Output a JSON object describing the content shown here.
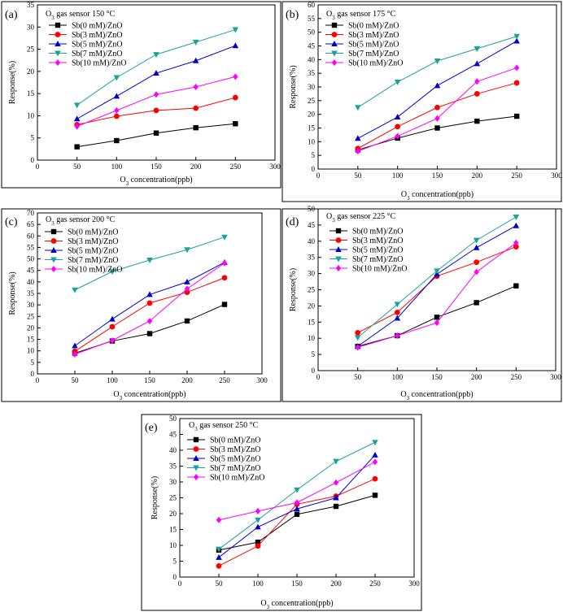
{
  "figure": {
    "description_label": "O3 gas sensor response multi-panel figure"
  },
  "chart_data": [
    {
      "type": "line",
      "panel_label": "(a)",
      "title": "O3 gas sensor 150 °C",
      "xlabel": "O3 concentration(ppb)",
      "ylabel": "Response(%)",
      "x": [
        50,
        100,
        150,
        200,
        250
      ],
      "xlim": [
        0,
        300
      ],
      "xticks": [
        0,
        50,
        100,
        150,
        200,
        250,
        300
      ],
      "ylim": [
        0,
        35
      ],
      "yticks": [
        0,
        5,
        10,
        15,
        20,
        25,
        30,
        35
      ],
      "series": [
        {
          "name": "Sb(0 mM)/ZnO",
          "color": "#000000",
          "marker": "square",
          "values": [
            3.0,
            4.4,
            6.1,
            7.3,
            8.2
          ]
        },
        {
          "name": "Sb(3 mM)/ZnO",
          "color": "#ff0000",
          "marker": "circle",
          "values": [
            8.0,
            9.9,
            11.2,
            11.7,
            14.1
          ]
        },
        {
          "name": "Sb(5 mM)/ZnO",
          "color": "#0000cc",
          "marker": "triangle",
          "values": [
            9.3,
            14.4,
            19.6,
            22.4,
            25.8
          ]
        },
        {
          "name": "Sb(7 mM)/ZnO",
          "color": "#1aa39a",
          "marker": "tridown",
          "values": [
            12.4,
            18.6,
            23.8,
            26.6,
            29.4
          ]
        },
        {
          "name": "Sb(10 mM)/ZnO",
          "color": "#ff00ff",
          "marker": "diamond",
          "values": [
            7.6,
            11.2,
            14.8,
            16.5,
            18.8
          ]
        }
      ]
    },
    {
      "type": "line",
      "panel_label": "(b)",
      "title": "O3 gas sensor 175 °C",
      "xlabel": "O3 concentration(ppb)",
      "ylabel": "Response(%)",
      "x": [
        50,
        100,
        150,
        200,
        250
      ],
      "xlim": [
        0,
        300
      ],
      "xticks": [
        0,
        50,
        100,
        150,
        200,
        250,
        300
      ],
      "ylim": [
        0,
        60
      ],
      "yticks": [
        0,
        5,
        10,
        15,
        20,
        25,
        30,
        35,
        40,
        45,
        50,
        55,
        60
      ],
      "series": [
        {
          "name": "Sb(0 mM)/ZnO",
          "color": "#000000",
          "marker": "square",
          "values": [
            7.0,
            11.3,
            15.0,
            17.5,
            19.3
          ]
        },
        {
          "name": "Sb(3 mM)/ZnO",
          "color": "#ff0000",
          "marker": "circle",
          "values": [
            7.5,
            15.5,
            22.5,
            27.5,
            31.5
          ]
        },
        {
          "name": "Sb(5 mM)/ZnO",
          "color": "#0000cc",
          "marker": "triangle",
          "values": [
            11.2,
            19.0,
            30.5,
            38.5,
            46.8
          ]
        },
        {
          "name": "Sb(7 mM)/ZnO",
          "color": "#1aa39a",
          "marker": "tridown",
          "values": [
            22.5,
            31.8,
            39.5,
            44.0,
            48.5
          ]
        },
        {
          "name": "Sb(10 mM)/ZnO",
          "color": "#ff00ff",
          "marker": "diamond",
          "values": [
            6.5,
            12.0,
            18.5,
            32.0,
            37.0
          ]
        }
      ]
    },
    {
      "type": "line",
      "panel_label": "(c)",
      "title": "O3 gas sensor 200 °C",
      "xlabel": "O3 concentration(ppb)",
      "ylabel": "Response(%)",
      "x": [
        50,
        100,
        150,
        200,
        250
      ],
      "xlim": [
        0,
        300
      ],
      "xticks": [
        0,
        50,
        100,
        150,
        200,
        250,
        300
      ],
      "ylim": [
        0,
        70
      ],
      "yticks": [
        0,
        5,
        10,
        15,
        20,
        25,
        30,
        35,
        40,
        45,
        50,
        55,
        60,
        65,
        70
      ],
      "series": [
        {
          "name": "Sb(0 mM)/ZnO",
          "color": "#000000",
          "marker": "square",
          "values": [
            9.0,
            14.3,
            17.5,
            23.0,
            30.2
          ]
        },
        {
          "name": "Sb(3 mM)/ZnO",
          "color": "#ff0000",
          "marker": "circle",
          "values": [
            9.8,
            20.5,
            30.8,
            35.5,
            41.8
          ]
        },
        {
          "name": "Sb(5 mM)/ZnO",
          "color": "#0000cc",
          "marker": "triangle",
          "values": [
            12.2,
            23.8,
            34.5,
            40.0,
            48.5
          ]
        },
        {
          "name": "Sb(7 mM)/ZnO",
          "color": "#1aa39a",
          "marker": "tridown",
          "values": [
            36.5,
            44.5,
            49.5,
            54.0,
            59.5
          ]
        },
        {
          "name": "Sb(10 mM)/ZnO",
          "color": "#ff00ff",
          "marker": "diamond",
          "values": [
            8.5,
            14.5,
            23.0,
            37.0,
            48.2
          ]
        }
      ]
    },
    {
      "type": "line",
      "panel_label": "(d)",
      "title": "O3 gas sensor 225 °C",
      "xlabel": "O3 concentration(ppb)",
      "ylabel": "Response(%)",
      "x": [
        50,
        100,
        150,
        200,
        250
      ],
      "xlim": [
        0,
        300
      ],
      "xticks": [
        0,
        50,
        100,
        150,
        200,
        250,
        300
      ],
      "ylim": [
        0,
        50
      ],
      "yticks": [
        0,
        5,
        10,
        15,
        20,
        25,
        30,
        35,
        40,
        45,
        50
      ],
      "series": [
        {
          "name": "Sb(0 mM)/ZnO",
          "color": "#000000",
          "marker": "square",
          "values": [
            7.5,
            10.8,
            16.5,
            21.0,
            26.2
          ]
        },
        {
          "name": "Sb(3 mM)/ZnO",
          "color": "#ff0000",
          "marker": "circle",
          "values": [
            11.7,
            18.0,
            29.2,
            33.5,
            38.3
          ]
        },
        {
          "name": "Sb(5 mM)/ZnO",
          "color": "#0000cc",
          "marker": "triangle",
          "values": [
            7.5,
            16.2,
            29.8,
            38.0,
            44.8
          ]
        },
        {
          "name": "Sb(7 mM)/ZnO",
          "color": "#1aa39a",
          "marker": "tridown",
          "values": [
            10.2,
            20.5,
            30.8,
            40.3,
            47.5
          ]
        },
        {
          "name": "Sb(10 mM)/ZnO",
          "color": "#ff00ff",
          "marker": "diamond",
          "values": [
            7.2,
            10.8,
            14.8,
            30.5,
            39.5
          ]
        }
      ]
    },
    {
      "type": "line",
      "panel_label": "(e)",
      "title": "O3 gas sensor 250 °C",
      "xlabel": "O3 concentration(ppb)",
      "ylabel": "Response(%)",
      "x": [
        50,
        100,
        150,
        200,
        250
      ],
      "xlim": [
        0,
        300
      ],
      "xticks": [
        0,
        50,
        100,
        150,
        200,
        250,
        300
      ],
      "ylim": [
        0,
        50
      ],
      "yticks": [
        0,
        5,
        10,
        15,
        20,
        25,
        30,
        35,
        40,
        45,
        50
      ],
      "series": [
        {
          "name": "Sb(0 mM)/ZnO",
          "color": "#000000",
          "marker": "square",
          "values": [
            8.5,
            11.0,
            19.8,
            22.3,
            25.8
          ]
        },
        {
          "name": "Sb(3 mM)/ZnO",
          "color": "#ff0000",
          "marker": "circle",
          "values": [
            3.5,
            9.8,
            23.0,
            25.5,
            31.0
          ]
        },
        {
          "name": "Sb(5 mM)/ZnO",
          "color": "#0000cc",
          "marker": "triangle",
          "values": [
            6.2,
            15.8,
            21.5,
            25.0,
            38.5
          ]
        },
        {
          "name": "Sb(7 mM)/ZnO",
          "color": "#1aa39a",
          "marker": "tridown",
          "values": [
            8.8,
            18.0,
            27.5,
            36.5,
            42.5
          ]
        },
        {
          "name": "Sb(10 mM)/ZnO",
          "color": "#ff00ff",
          "marker": "diamond",
          "values": [
            18.0,
            20.8,
            23.5,
            29.8,
            36.3
          ]
        }
      ]
    }
  ]
}
